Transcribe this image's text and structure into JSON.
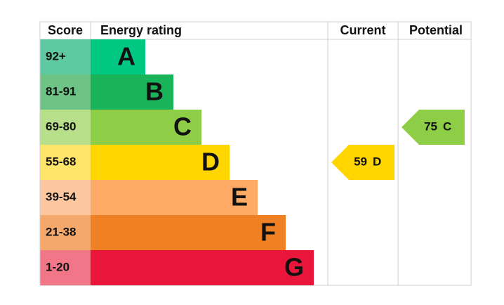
{
  "header": {
    "score": "Score",
    "rating": "Energy rating",
    "current": "Current",
    "potential": "Potential"
  },
  "bands": [
    {
      "score": "92+",
      "letter": "A",
      "color": "#00c781",
      "light": "#5fc9a2"
    },
    {
      "score": "81-91",
      "letter": "B",
      "color": "#19b459",
      "light": "#6dc486"
    },
    {
      "score": "69-80",
      "letter": "C",
      "color": "#8dce46",
      "light": "#b8df8c"
    },
    {
      "score": "55-68",
      "letter": "D",
      "color": "#ffd500",
      "light": "#ffe46a"
    },
    {
      "score": "39-54",
      "letter": "E",
      "color": "#fcaa65",
      "light": "#fdc8a0"
    },
    {
      "score": "21-38",
      "letter": "F",
      "color": "#ef8023",
      "light": "#f4a86c"
    },
    {
      "score": "1-20",
      "letter": "G",
      "color": "#e9153b",
      "light": "#f07688"
    }
  ],
  "current": {
    "score": "59",
    "band": "D"
  },
  "potential": {
    "score": "75",
    "band": "C"
  }
}
